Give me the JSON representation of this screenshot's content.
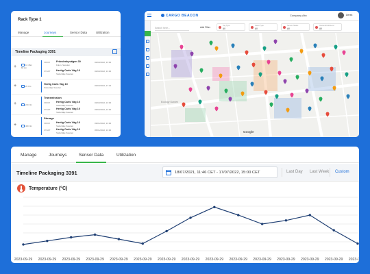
{
  "left_panel": {
    "title": "Rack Type 1",
    "tabs": [
      "Manage",
      "Journeys",
      "Sensor Data",
      "Utilization"
    ],
    "active_tab": "Journeys",
    "section_title": "Timeline Packaging 3391",
    "rows": [
      {
        "side": [
          "1h 46m",
          "82 km"
        ],
        "entries": [
          {
            "tag": "FROM",
            "place": "Fröndenbyvägen 30",
            "sub": "Falun, Sweden",
            "date": "02/02/2022, 13:00"
          },
          {
            "tag": "START",
            "place": "Hertig Carls Väg 10",
            "sub": "Södertälje Sweden",
            "date": "02/02/2022, 13:00"
          }
        ]
      },
      {
        "side": [
          "2h 0m"
        ],
        "entries": [
          {
            "tag": "",
            "place": "Hertig Carls Väg 10",
            "sub": "Södertälje Sweden",
            "date": "02/02/2022, 17:13"
          }
        ]
      },
      {
        "side": [
          "24h 0m"
        ],
        "section": "Transmission",
        "entries": [
          {
            "tag": "FROM",
            "place": "Hertig Carls Väg 10",
            "sub": "Södertälje Sweden",
            "date": "02/02/2022, 13:00"
          },
          {
            "tag": "START",
            "place": "Hertig Carls Väg 10",
            "sub": "Södertälje Sweden",
            "date": "03/02/2022, 13:00"
          }
        ]
      },
      {
        "side": [
          "46h 0m"
        ],
        "section": "Storage",
        "entries": [
          {
            "tag": "FROM",
            "place": "Hertig Carls Väg 10",
            "sub": "Södertälje Sweden",
            "date": "03/01/2022, 13:00"
          },
          {
            "tag": "START",
            "place": "Hertig Carls Väg 10",
            "sub": "Södertälje Sweden",
            "date": "05/01/2022, 13:00"
          }
        ]
      }
    ]
  },
  "map_panel": {
    "logo": "CARGO BEACON",
    "company": "Company Abc",
    "user": "Derek",
    "search_placeholder": "Search here...",
    "add_filter": "Add Filter",
    "chips": [
      {
        "label": "Tag Type",
        "value": "All"
      },
      {
        "label": "Asset Type",
        "value": "All"
      },
      {
        "label": "Sensor Status",
        "value": "All"
      },
      {
        "label": "Inbound/Outbound",
        "value": "All"
      }
    ],
    "map_attribution": "Google",
    "map_label": "Ecology Garden",
    "pin_colors": [
      "#e84393",
      "#8e44ad",
      "#27ae60",
      "#f39c12",
      "#2980b9",
      "#e74c3c",
      "#16a085"
    ]
  },
  "bottom_panel": {
    "tabs": [
      "Manage",
      "Journeys",
      "Sensor Data",
      "Utilization"
    ],
    "active_tab": "Sensor Data",
    "title": "Timeline Packaging 3391",
    "date_range": "18/07/2021, 11:46 CET - 17/07/2022, 15:00 CET",
    "ranges": [
      "Last Day",
      "Last Week",
      "Custom"
    ],
    "active_range": "Custom",
    "sensor_title": "Temperature (°C)"
  },
  "chart_data": {
    "type": "line",
    "title": "Temperature (°C)",
    "x": [
      "2023-09-29",
      "2023-09-29",
      "2023-09-29",
      "2023-09-29",
      "2023-09-29",
      "2023-09-29",
      "2023-09-29",
      "2023-09-29",
      "2023-09-29",
      "2023-09-29",
      "2023-09-29",
      "2023-09-29",
      "2023-09-29",
      "2023-09-29",
      "2023-09-29"
    ],
    "yticks": [
      0,
      10,
      20,
      30,
      40,
      50,
      60
    ],
    "ylim": [
      0,
      60
    ],
    "series": [
      {
        "values": [
          7,
          11,
          15,
          18,
          13,
          8,
          22,
          37,
          49,
          40,
          30,
          34,
          40,
          23,
          8
        ]
      }
    ],
    "grid": true,
    "line_color": "#1f3f73"
  }
}
